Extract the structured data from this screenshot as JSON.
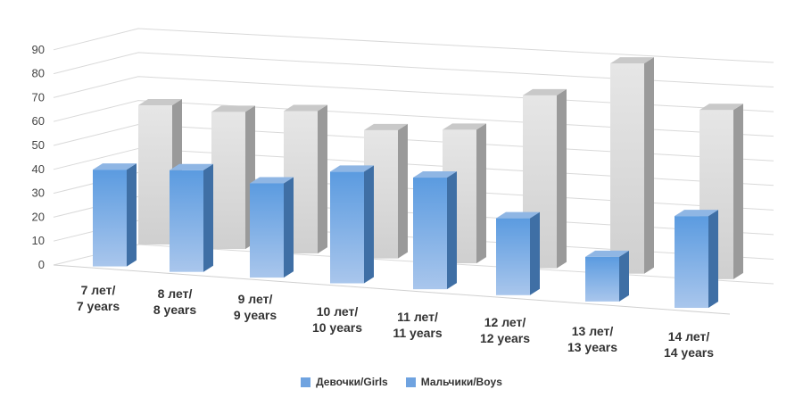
{
  "chart_data": {
    "type": "bar",
    "style": "3d-column",
    "categories": [
      [
        "7 лет/",
        "7 years"
      ],
      [
        "8 лет/",
        "8 years"
      ],
      [
        "9 лет/",
        "9 years"
      ],
      [
        "10 лет/",
        "10 years"
      ],
      [
        "11 лет/",
        "11 years"
      ],
      [
        "12 лет/",
        "12 years"
      ],
      [
        "13 лет/",
        "13 years"
      ],
      [
        "14 лет/",
        "14 years"
      ]
    ],
    "series": [
      {
        "name": "Девочки/Girls",
        "values": [
          39,
          41,
          38,
          45,
          45,
          31,
          18,
          37
        ],
        "color": "#6fa3e0"
      },
      {
        "name": "Мальчики/Boys",
        "values": [
          58,
          57,
          59,
          53,
          55,
          71,
          86,
          69
        ],
        "color": "#c8c8c8"
      }
    ],
    "yticks": [
      0,
      10,
      20,
      30,
      40,
      50,
      60,
      70,
      80,
      90
    ],
    "ylim": [
      0,
      90
    ],
    "grid": true,
    "legend_position": "bottom"
  }
}
